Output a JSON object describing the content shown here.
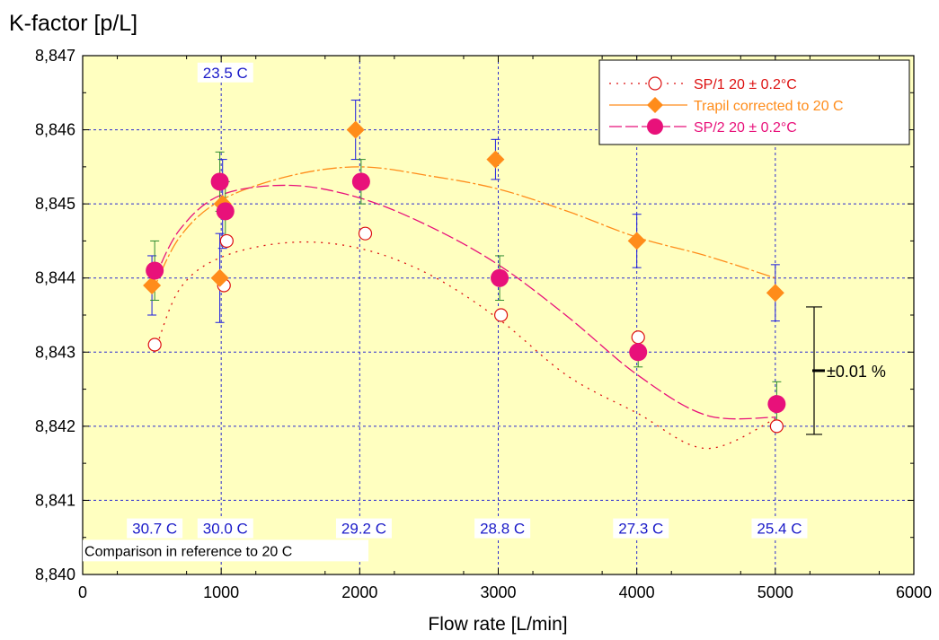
{
  "chart_data": {
    "type": "scatter",
    "ylabel": "K-factor [p/L]",
    "xlabel": "Flow rate [L/min]",
    "xlim": [
      0,
      6000
    ],
    "ylim": [
      8.84,
      8.847
    ],
    "x_ticks": [
      0,
      1000,
      2000,
      3000,
      4000,
      5000,
      6000
    ],
    "x_tick_labels": [
      "0",
      "1000",
      "2000",
      "3000",
      "4000",
      "5000",
      "6000"
    ],
    "y_ticks": [
      8.84,
      8.841,
      8.842,
      8.843,
      8.844,
      8.845,
      8.846,
      8.847
    ],
    "y_tick_labels": [
      "8,840",
      "8,841",
      "8,842",
      "8,843",
      "8,844",
      "8,845",
      "8,846",
      "8,847"
    ],
    "grid": true,
    "legend_position": "top-right",
    "colors": {
      "background": "#ffffc0",
      "sp1": "#dd1111",
      "trapil": "#ff8c1a",
      "sp2": "#e8117a",
      "errorbar_blue": "#1a1ae0",
      "errorbar_green": "#2e8b2e",
      "grid": "#2a2ad0",
      "temp_label": "#1a1ac8"
    },
    "series": [
      {
        "name": "SP/1 20 ± 0.2°C",
        "marker": "open-circle",
        "x": [
          520,
          1020,
          1040,
          2040,
          3020,
          4010,
          5010
        ],
        "y": [
          8.8431,
          8.8439,
          8.8445,
          8.8446,
          8.8435,
          8.8432,
          8.842
        ],
        "fit": {
          "x": [
            520,
            700,
            1000,
            1500,
            2000,
            2500,
            3000,
            3500,
            4000,
            4500,
            5000
          ],
          "y": [
            8.843,
            8.84385,
            8.84428,
            8.84448,
            8.8444,
            8.84405,
            8.84345,
            8.84268,
            8.84218,
            8.8417,
            8.8421
          ]
        }
      },
      {
        "name": "Trapil  corrected to 20 C",
        "marker": "diamond",
        "x": [
          500,
          990,
          1010,
          1970,
          2980,
          4000,
          5000
        ],
        "y": [
          8.8439,
          8.844,
          8.845,
          8.846,
          8.8456,
          8.8445,
          8.8438
        ],
        "err": [
          0.0004,
          0.0006,
          0.0006,
          0.0004,
          0.00027,
          0.00036,
          0.00038
        ],
        "fit": {
          "x": [
            500,
            700,
            1000,
            1500,
            2000,
            2500,
            3000,
            3500,
            4000,
            4500,
            5000
          ],
          "y": [
            8.8438,
            8.84455,
            8.84505,
            8.84538,
            8.8455,
            8.84538,
            8.8452,
            8.8449,
            8.84455,
            8.8443,
            8.844
          ]
        }
      },
      {
        "name": "SP/2 20 ± 0.2°C",
        "marker": "filled-circle",
        "x": [
          520,
          990,
          1030,
          2010,
          3010,
          4010,
          5010
        ],
        "y": [
          8.8441,
          8.8453,
          8.8449,
          8.8453,
          8.844,
          8.843,
          8.8423
        ],
        "err": [
          0.0004,
          0.0004,
          0.0004,
          0.0003,
          0.0003,
          0.0002,
          0.0003
        ],
        "fit": {
          "x": [
            520,
            700,
            1000,
            1500,
            2000,
            2500,
            3000,
            3500,
            4000,
            4500,
            5000
          ],
          "y": [
            8.844,
            8.84465,
            8.84512,
            8.84525,
            8.84508,
            8.8447,
            8.84418,
            8.84348,
            8.8427,
            8.84215,
            8.84212
          ]
        }
      }
    ],
    "annotations": {
      "temperatures": [
        {
          "text": "23.5 C",
          "x": 1030,
          "y": 8.8467
        },
        {
          "text": "30.7 C",
          "x": 520,
          "y": 8.84055
        },
        {
          "text": "30.0 C",
          "x": 1030,
          "y": 8.84055
        },
        {
          "text": "29.2 C",
          "x": 2030,
          "y": 8.84055
        },
        {
          "text": "28.8 C",
          "x": 3030,
          "y": 8.84055
        },
        {
          "text": "27.3 C",
          "x": 4030,
          "y": 8.84055
        },
        {
          "text": "25.4 C",
          "x": 5030,
          "y": 8.84055
        }
      ],
      "reference_note": {
        "text": "Comparison in reference to 20 C",
        "x": 130,
        "y": 8.84025
      },
      "range_bar": {
        "text": "±0.01 %",
        "x": 5280,
        "y_center": 8.84275,
        "half_range": 0.00086
      }
    }
  }
}
